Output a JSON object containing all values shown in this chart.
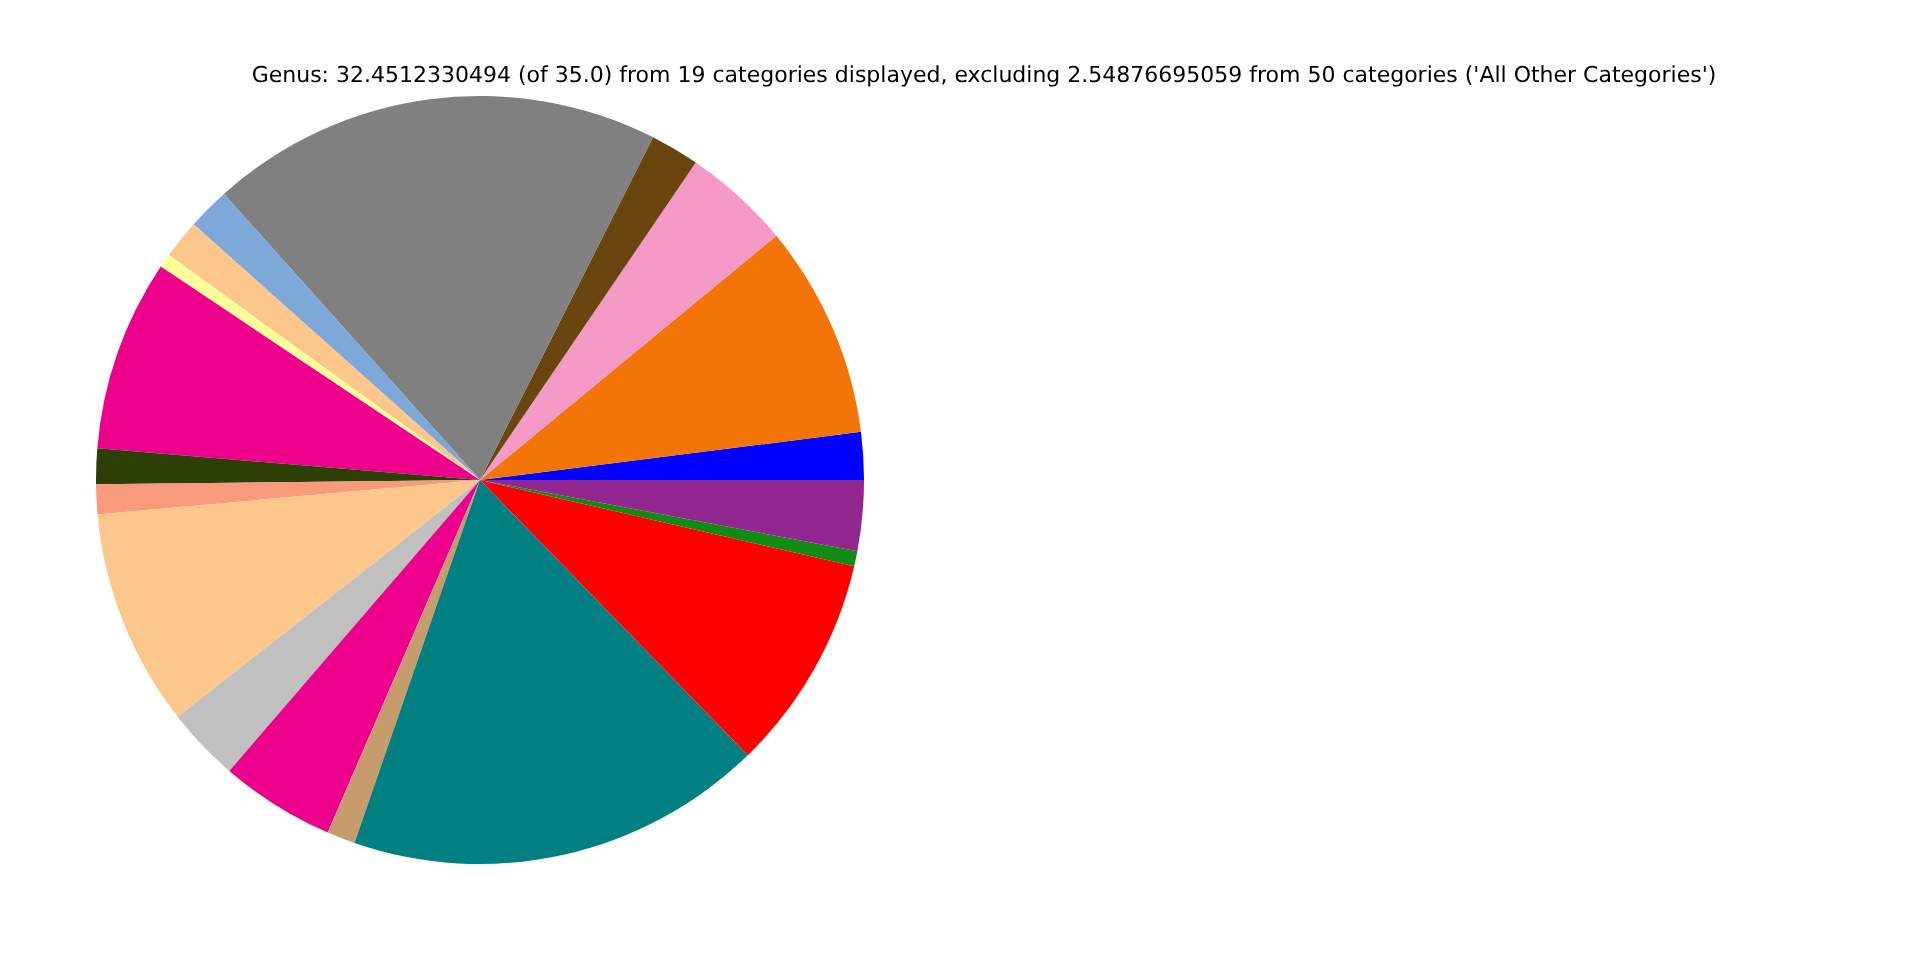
{
  "chart_data": {
    "type": "pie",
    "title": "Genus: 32.4512330494 (of 35.0) from 19 categories displayed, excluding 2.54876695059 from 50 categories ('All Other Categories')",
    "categories": [
      null,
      null,
      null,
      null,
      null,
      null,
      null,
      null,
      null,
      null,
      null,
      null,
      null,
      null,
      null,
      null,
      null,
      null,
      null
    ],
    "values": [
      2.0,
      8.97,
      4.53,
      2.06,
      19.06,
      1.78,
      1.64,
      0.58,
      8.06,
      1.5,
      1.25,
      9.14,
      3.11,
      4.83,
      1.19,
      17.58,
      9.11,
      0.64,
      2.97
    ],
    "colors": [
      "#0000ff",
      "#f47507",
      "#f59ac6",
      "#6b4510",
      "#808080",
      "#7ea8d8",
      "#fdc68a",
      "#ffff99",
      "#ec008c",
      "#2c3f05",
      "#f99a7a",
      "#fdc68a",
      "#c0c0c0",
      "#ec008c",
      "#c69c6d",
      "#008080",
      "#ff0000",
      "#118a11",
      "#92278f"
    ]
  }
}
